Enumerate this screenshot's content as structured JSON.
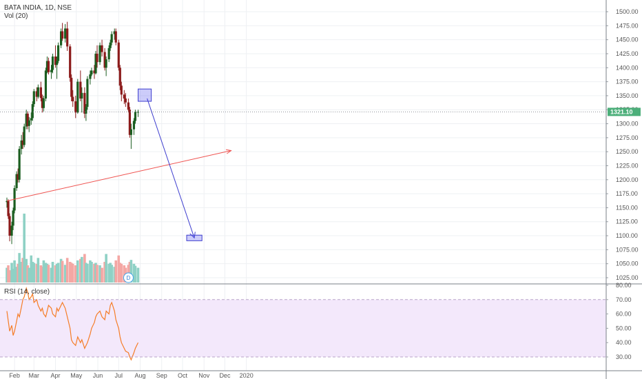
{
  "header": {
    "symbol": "BATA INDIA, 1D, NSE",
    "volume_label": "Vol (20)",
    "rsi_label": "RSI (14, close)"
  },
  "last_price": "1321.10",
  "dividend_marker": "D",
  "colors": {
    "up": "#26a69a",
    "down": "#ef5350",
    "up_candle": "#1b5e20",
    "down_candle": "#8b1a1a",
    "volume_up": "#8fd1c5",
    "volume_down": "#f4a7a4",
    "rsi_line": "#f57c26",
    "rsi_band": "#f3e8fb",
    "trendline": "#ef5350",
    "projection": "#3f3fcf",
    "price_tag": "#4caf7a"
  },
  "chart_data": [
    {
      "type": "candlestick",
      "title": "BATA INDIA, 1D, NSE",
      "x_tick_labels": [
        "Feb",
        "Mar",
        "Apr",
        "May",
        "Jun",
        "Jul",
        "Aug",
        "Sep",
        "Oct",
        "Nov",
        "Dec",
        "2020"
      ],
      "y_tick_labels": [
        "1025.00",
        "1050.00",
        "1075.00",
        "1100.00",
        "1125.00",
        "1150.00",
        "1175.00",
        "1200.00",
        "1225.00",
        "1250.00",
        "1275.00",
        "1300.00",
        "1325.00",
        "1350.00",
        "1375.00",
        "1400.00",
        "1425.00",
        "1450.00",
        "1475.00",
        "1500.00"
      ],
      "ylim": [
        1010,
        1510
      ],
      "dates": [
        "2019-01-21",
        "2019-01-23",
        "2019-01-25",
        "2019-01-28",
        "2019-01-30",
        "2019-02-01",
        "2019-02-04",
        "2019-02-06",
        "2019-02-08",
        "2019-02-11",
        "2019-02-13",
        "2019-02-15",
        "2019-02-18",
        "2019-02-20",
        "2019-02-22",
        "2019-02-25",
        "2019-02-27",
        "2019-03-01",
        "2019-03-05",
        "2019-03-07",
        "2019-03-11",
        "2019-03-13",
        "2019-03-15",
        "2019-03-18",
        "2019-03-20",
        "2019-03-22",
        "2019-03-26",
        "2019-03-28",
        "2019-04-01",
        "2019-04-03",
        "2019-04-05",
        "2019-04-09",
        "2019-04-11",
        "2019-04-15",
        "2019-04-18",
        "2019-04-22",
        "2019-04-24",
        "2019-04-26",
        "2019-04-30",
        "2019-05-03",
        "2019-05-07",
        "2019-05-09",
        "2019-05-13",
        "2019-05-15",
        "2019-05-17",
        "2019-05-21",
        "2019-05-23",
        "2019-05-27",
        "2019-05-29",
        "2019-05-31",
        "2019-06-04",
        "2019-06-07",
        "2019-06-11",
        "2019-06-13",
        "2019-06-17",
        "2019-06-19",
        "2019-06-21",
        "2019-06-25",
        "2019-06-27",
        "2019-07-01",
        "2019-07-03",
        "2019-07-05",
        "2019-07-09",
        "2019-07-11",
        "2019-07-15",
        "2019-07-17",
        "2019-07-19",
        "2019-07-23",
        "2019-07-25",
        "2019-07-29"
      ],
      "ohlc": [
        [
          1160,
          1168,
          1150,
          1162
        ],
        [
          1162,
          1165,
          1130,
          1135
        ],
        [
          1135,
          1140,
          1090,
          1100
        ],
        [
          1100,
          1125,
          1085,
          1118
        ],
        [
          1118,
          1150,
          1110,
          1145
        ],
        [
          1145,
          1190,
          1140,
          1185
        ],
        [
          1185,
          1215,
          1180,
          1210
        ],
        [
          1210,
          1220,
          1195,
          1200
        ],
        [
          1200,
          1260,
          1195,
          1255
        ],
        [
          1255,
          1280,
          1245,
          1270
        ],
        [
          1270,
          1285,
          1255,
          1262
        ],
        [
          1262,
          1300,
          1258,
          1295
        ],
        [
          1295,
          1325,
          1290,
          1318
        ],
        [
          1318,
          1322,
          1290,
          1296
        ],
        [
          1296,
          1312,
          1285,
          1306
        ],
        [
          1306,
          1320,
          1298,
          1310
        ],
        [
          1310,
          1340,
          1305,
          1335
        ],
        [
          1335,
          1362,
          1330,
          1358
        ],
        [
          1358,
          1365,
          1340,
          1348
        ],
        [
          1348,
          1370,
          1345,
          1365
        ],
        [
          1365,
          1375,
          1340,
          1346
        ],
        [
          1346,
          1352,
          1320,
          1328
        ],
        [
          1328,
          1350,
          1322,
          1345
        ],
        [
          1345,
          1400,
          1340,
          1395
        ],
        [
          1395,
          1420,
          1390,
          1412
        ],
        [
          1412,
          1418,
          1388,
          1392
        ],
        [
          1392,
          1405,
          1380,
          1396
        ],
        [
          1396,
          1425,
          1390,
          1420
        ],
        [
          1420,
          1440,
          1400,
          1405
        ],
        [
          1405,
          1420,
          1380,
          1412
        ],
        [
          1412,
          1445,
          1408,
          1440
        ],
        [
          1440,
          1470,
          1435,
          1465
        ],
        [
          1465,
          1480,
          1448,
          1452
        ],
        [
          1452,
          1478,
          1445,
          1470
        ],
        [
          1470,
          1482,
          1430,
          1438
        ],
        [
          1438,
          1442,
          1375,
          1382
        ],
        [
          1382,
          1388,
          1340,
          1348
        ],
        [
          1348,
          1360,
          1330,
          1340
        ],
        [
          1340,
          1350,
          1310,
          1320
        ],
        [
          1320,
          1380,
          1318,
          1375
        ],
        [
          1375,
          1395,
          1340,
          1345
        ],
        [
          1345,
          1365,
          1320,
          1355
        ],
        [
          1355,
          1365,
          1310,
          1318
        ],
        [
          1318,
          1335,
          1305,
          1330
        ],
        [
          1330,
          1385,
          1325,
          1380
        ],
        [
          1380,
          1395,
          1370,
          1388
        ],
        [
          1388,
          1400,
          1385,
          1395
        ],
        [
          1395,
          1405,
          1380,
          1390
        ],
        [
          1390,
          1430,
          1388,
          1425
        ],
        [
          1425,
          1440,
          1400,
          1410
        ],
        [
          1410,
          1445,
          1405,
          1440
        ],
        [
          1440,
          1450,
          1420,
          1428
        ],
        [
          1428,
          1435,
          1395,
          1400
        ],
        [
          1400,
          1420,
          1385,
          1415
        ],
        [
          1415,
          1440,
          1410,
          1435
        ],
        [
          1435,
          1450,
          1430,
          1445
        ],
        [
          1445,
          1465,
          1440,
          1460
        ],
        [
          1460,
          1470,
          1450,
          1465
        ],
        [
          1465,
          1470,
          1440,
          1445
        ],
        [
          1445,
          1450,
          1395,
          1400
        ],
        [
          1400,
          1405,
          1360,
          1368
        ],
        [
          1368,
          1375,
          1340,
          1352
        ],
        [
          1352,
          1360,
          1335,
          1345
        ],
        [
          1345,
          1355,
          1330,
          1338
        ],
        [
          1338,
          1345,
          1320,
          1325
        ],
        [
          1325,
          1330,
          1275,
          1280
        ],
        [
          1280,
          1300,
          1255,
          1290
        ],
        [
          1290,
          1310,
          1280,
          1305
        ],
        [
          1305,
          1325,
          1300,
          1321.1
        ],
        [
          1321.1,
          1325,
          1312,
          1321.1
        ]
      ],
      "volume": [
        30,
        35,
        25,
        40,
        28,
        45,
        32,
        38,
        60,
        42,
        50,
        140,
        48,
        35,
        30,
        55,
        42,
        40,
        38,
        50,
        35,
        32,
        45,
        40,
        38,
        36,
        30,
        42,
        35,
        38,
        40,
        48,
        44,
        36,
        50,
        42,
        40,
        38,
        35,
        45,
        48,
        52,
        58,
        40,
        38,
        45,
        42,
        38,
        40,
        36,
        35,
        30,
        42,
        58,
        38,
        40,
        36,
        32,
        45,
        55,
        40,
        38,
        35,
        30,
        36,
        42,
        46,
        38,
        34,
        30
      ],
      "annotations": [
        {
          "kind": "trendline",
          "from": [
            "2019-01-21",
            1162
          ],
          "to": [
            "2019-12-10",
            1252
          ]
        },
        {
          "kind": "zone",
          "x_range": [
            "2019-07-29",
            "2019-08-17"
          ],
          "y_range": [
            1340,
            1362
          ]
        },
        {
          "kind": "arrow",
          "from": [
            "2019-08-11",
            1345
          ],
          "to": [
            "2019-10-18",
            1096
          ]
        },
        {
          "kind": "zone",
          "x_range": [
            "2019-10-07",
            "2019-10-29"
          ],
          "y_range": [
            1091,
            1101
          ]
        }
      ]
    },
    {
      "type": "line",
      "title": "RSI (14, close)",
      "y_tick_labels": [
        "30.00",
        "40.00",
        "50.00",
        "60.00",
        "70.00",
        "80.00"
      ],
      "ylim": [
        26,
        84
      ],
      "band": [
        30,
        70
      ],
      "values": [
        62,
        55,
        48,
        52,
        45,
        48,
        55,
        60,
        58,
        65,
        70,
        72,
        78,
        75,
        70,
        72,
        74,
        68,
        70,
        66,
        62,
        64,
        60,
        58,
        62,
        66,
        64,
        60,
        58,
        64,
        62,
        66,
        68,
        64,
        58,
        50,
        42,
        40,
        38,
        44,
        40,
        42,
        36,
        38,
        40,
        46,
        50,
        54,
        58,
        60,
        62,
        58,
        56,
        62,
        60,
        66,
        68,
        62,
        56,
        50,
        44,
        40,
        36,
        34,
        33,
        30,
        28,
        33,
        36,
        40
      ]
    }
  ]
}
